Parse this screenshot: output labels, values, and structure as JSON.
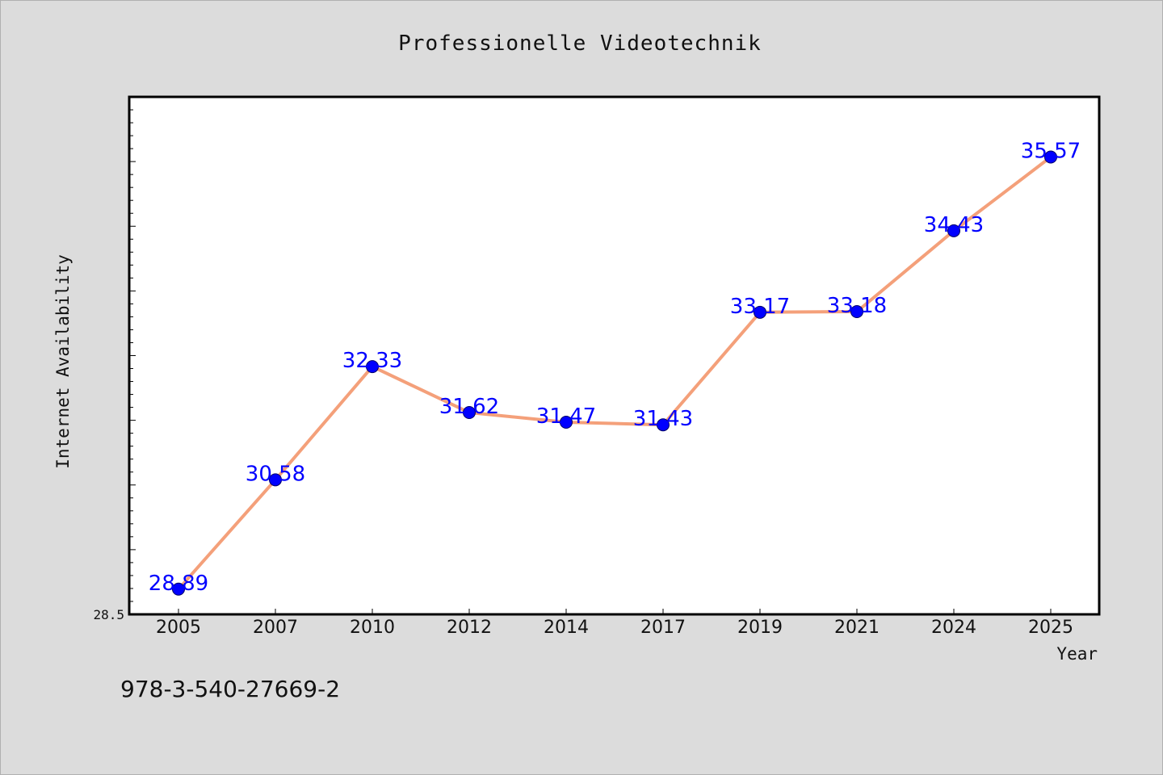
{
  "chart_data": {
    "type": "line",
    "title": "Professionelle Videotechnik",
    "xlabel": "Year",
    "ylabel": "Internet Availability",
    "categories": [
      "2005",
      "2007",
      "2010",
      "2012",
      "2014",
      "2017",
      "2019",
      "2021",
      "2024",
      "2025"
    ],
    "series": [
      {
        "values": [
          28.89,
          30.58,
          32.33,
          31.62,
          31.47,
          31.43,
          33.17,
          33.18,
          34.43,
          35.57
        ],
        "data_labels": [
          "28.89",
          "30.58",
          "32.33",
          "31.62",
          "31.47",
          "31.43",
          "33.17",
          "33.18",
          "34.43",
          "35.57"
        ],
        "line_color": "#f4a07a",
        "marker_color": "#0000ff"
      }
    ],
    "ylim": [
      28.5,
      36.5
    ],
    "ytick_labels": [
      "28.5"
    ],
    "grid": false,
    "legend": "none"
  },
  "footer": {
    "isbn": "978-3-540-27669-2"
  },
  "colors": {
    "background": "#dcdcdc",
    "plot_background": "#ffffff",
    "label_color": "#0000ff"
  }
}
